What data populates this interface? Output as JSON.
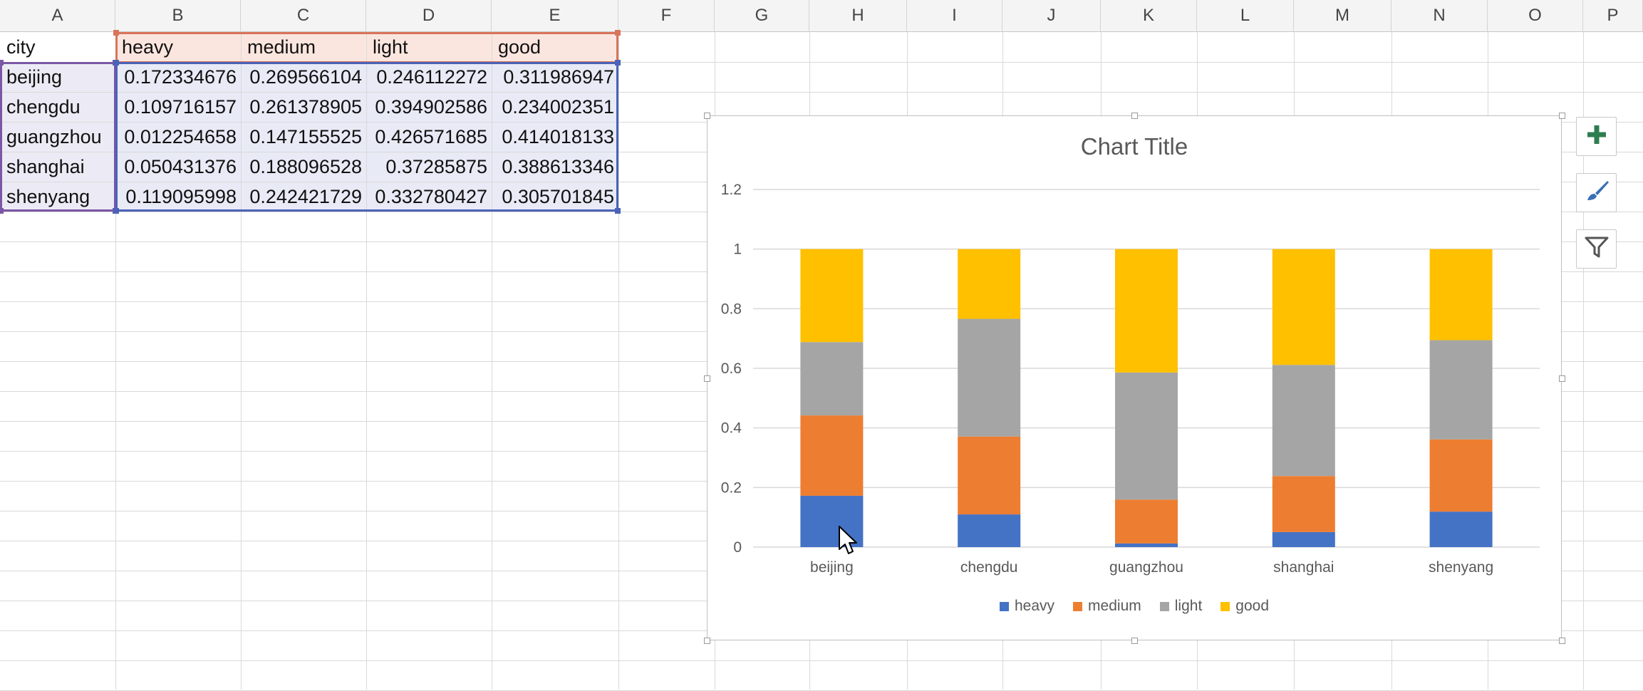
{
  "sheet": {
    "column_headers": [
      "A",
      "B",
      "C",
      "D",
      "E",
      "F",
      "G",
      "H",
      "I",
      "J",
      "K",
      "L",
      "M",
      "N",
      "O",
      "P"
    ],
    "header_row": [
      "city",
      "heavy",
      "medium",
      "light",
      "good"
    ],
    "rows": [
      [
        "beijing",
        "0.172334676",
        "0.269566104",
        "0.246112272",
        "0.311986947"
      ],
      [
        "chengdu",
        "0.109716157",
        "0.261378905",
        "0.394902586",
        "0.234002351"
      ],
      [
        "guangzhou",
        "0.012254658",
        "0.147155525",
        "0.426571685",
        "0.414018133"
      ],
      [
        "shanghai",
        "0.050431376",
        "0.188096528",
        "0.37285875",
        "0.388613346"
      ],
      [
        "shenyang",
        "0.119095998",
        "0.242421729",
        "0.332780427",
        "0.305701845"
      ]
    ]
  },
  "chart_toolbar": {
    "elements_icon": "plus-icon",
    "styles_icon": "paintbrush-icon",
    "filter_icon": "funnel-icon"
  },
  "chart_data": {
    "type": "bar",
    "stacked": true,
    "title": "Chart Title",
    "categories": [
      "beijing",
      "chengdu",
      "guangzhou",
      "shanghai",
      "shenyang"
    ],
    "series": [
      {
        "name": "heavy",
        "color": "#4472c4",
        "values": [
          0.172334676,
          0.109716157,
          0.012254658,
          0.050431376,
          0.119095998
        ]
      },
      {
        "name": "medium",
        "color": "#ed7d31",
        "values": [
          0.269566104,
          0.261378905,
          0.147155525,
          0.188096528,
          0.242421729
        ]
      },
      {
        "name": "light",
        "color": "#a5a5a5",
        "values": [
          0.246112272,
          0.394902586,
          0.426571685,
          0.37285875,
          0.332780427
        ]
      },
      {
        "name": "good",
        "color": "#ffc000",
        "values": [
          0.311986947,
          0.234002351,
          0.414018133,
          0.388613346,
          0.305701845
        ]
      }
    ],
    "ylim": [
      0,
      1.2
    ],
    "yticks": [
      "0",
      "0.2",
      "0.4",
      "0.6",
      "0.8",
      "1",
      "1.2"
    ],
    "grid": true,
    "legend_position": "bottom"
  }
}
